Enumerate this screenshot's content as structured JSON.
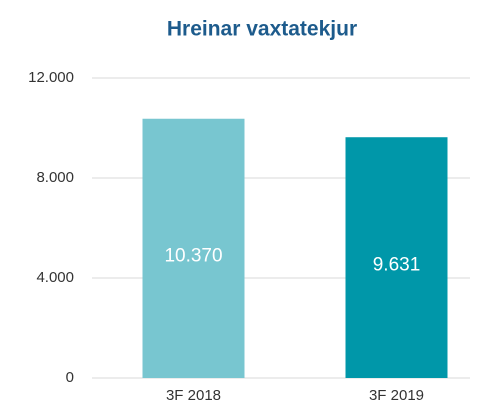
{
  "chart_data": {
    "type": "bar",
    "title": "Hreinar vaxtatekjur",
    "categories": [
      "3F 2018",
      "3F 2019"
    ],
    "values": [
      10370,
      9631
    ],
    "value_labels": [
      "10.370",
      "9.631"
    ],
    "colors": [
      "#78c6d0",
      "#0097a9"
    ],
    "ylim": [
      0,
      12000
    ],
    "yticks": [
      0,
      {
        "value": 4000,
        "label": "4.000"
      },
      {
        "value": 8000,
        "label": "8.000"
      },
      {
        "value": 12000,
        "label": "12.000"
      }
    ],
    "grid": true
  }
}
